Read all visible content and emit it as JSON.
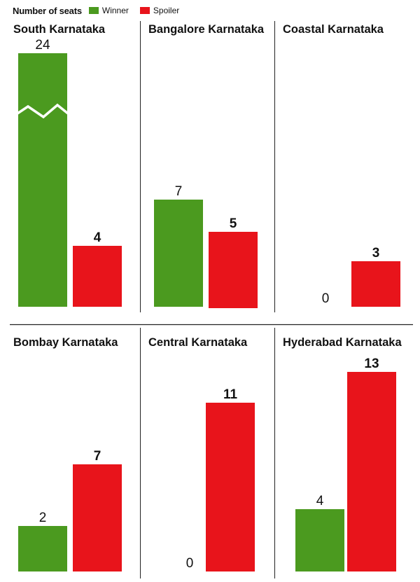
{
  "legend": {
    "title": "Number of seats",
    "winner_label": "Winner",
    "spoiler_label": "Spoiler"
  },
  "colors": {
    "winner": "#4b9a1f",
    "spoiler": "#e8141b"
  },
  "chart_data": {
    "type": "bar",
    "series": [
      {
        "name": "Winner",
        "values": [
          24,
          7,
          0,
          2,
          0,
          4
        ]
      },
      {
        "name": "Spoiler",
        "values": [
          4,
          5,
          3,
          7,
          11,
          13
        ]
      }
    ],
    "categories": [
      "South Karnataka",
      "Bangalore Karnataka",
      "Coastal Karnataka",
      "Bombay Karnataka",
      "Central Karnataka",
      "Hyderabad Karnataka"
    ],
    "panels": [
      {
        "title": "South Karnataka",
        "winner": 24,
        "spoiler": 4,
        "winner_broken_axis": true
      },
      {
        "title": "Bangalore Karnataka",
        "winner": 7,
        "spoiler": 5
      },
      {
        "title": "Coastal Karnataka",
        "winner": 0,
        "spoiler": 3
      },
      {
        "title": "Bombay Karnataka",
        "winner": 2,
        "spoiler": 7
      },
      {
        "title": "Central Karnataka",
        "winner": 0,
        "spoiler": 11
      },
      {
        "title": "Hyderabad Karnataka",
        "winner": 4,
        "spoiler": 13
      }
    ]
  }
}
